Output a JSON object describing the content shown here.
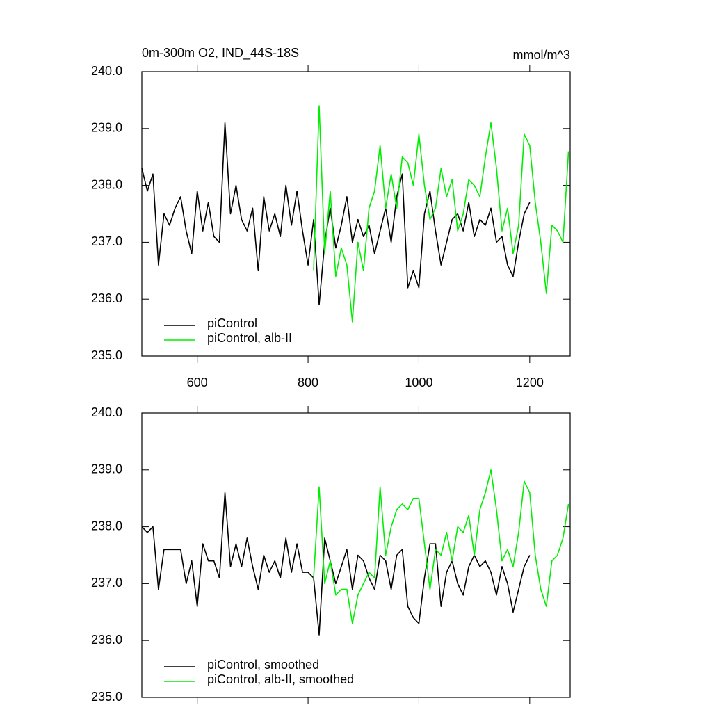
{
  "chart_data": [
    {
      "type": "line",
      "title": "0m-300m O2, IND_44S-18S",
      "units": "mmol/m^3",
      "xlim": [
        500,
        1273
      ],
      "xticks": [
        600,
        800,
        1000,
        1200
      ],
      "xtick_labels": true,
      "ylim": [
        235,
        240
      ],
      "yticks": [
        {
          "value": 235,
          "label": "235.0"
        },
        {
          "value": 236,
          "label": "236.0"
        },
        {
          "value": 237,
          "label": "237.0"
        },
        {
          "value": 238,
          "label": "238.0"
        },
        {
          "value": 239,
          "label": "239.0"
        },
        {
          "value": 240,
          "label": "240.0"
        }
      ],
      "legend": "lower left",
      "series": [
        {
          "name": "piControl",
          "color": "#000000",
          "x": [
            500,
            510,
            520,
            530,
            540,
            550,
            560,
            570,
            580,
            590,
            600,
            610,
            620,
            630,
            640,
            650,
            660,
            670,
            680,
            690,
            700,
            710,
            720,
            730,
            740,
            750,
            760,
            770,
            780,
            790,
            800,
            810,
            820,
            830,
            840,
            850,
            860,
            870,
            880,
            890,
            900,
            910,
            920,
            930,
            940,
            950,
            960,
            970,
            980,
            990,
            1000,
            1010,
            1020,
            1030,
            1040,
            1050,
            1060,
            1070,
            1080,
            1090,
            1100,
            1110,
            1120,
            1130,
            1140,
            1150,
            1160,
            1170,
            1180,
            1190,
            1200
          ],
          "values": [
            238.3,
            237.9,
            238.2,
            236.6,
            237.5,
            237.3,
            237.6,
            237.8,
            237.2,
            236.8,
            237.9,
            237.2,
            237.7,
            237.1,
            237.0,
            239.1,
            237.5,
            238.0,
            237.4,
            237.2,
            237.6,
            236.5,
            237.8,
            237.2,
            237.5,
            237.1,
            238.0,
            237.3,
            237.9,
            237.2,
            236.6,
            237.4,
            235.9,
            237.0,
            237.6,
            236.9,
            237.3,
            237.8,
            237.0,
            237.4,
            237.1,
            237.3,
            236.8,
            237.2,
            237.6,
            237.0,
            237.8,
            238.2,
            236.2,
            236.5,
            236.2,
            237.5,
            237.9,
            237.2,
            236.6,
            237.0,
            237.4,
            237.5,
            237.2,
            237.7,
            237.1,
            237.4,
            237.3,
            237.6,
            237.0,
            237.1,
            236.6,
            236.4,
            237.0,
            237.5,
            237.7
          ]
        },
        {
          "name": "piControl, alb-II",
          "color": "#00ee00",
          "x": [
            810,
            820,
            830,
            840,
            850,
            860,
            870,
            880,
            890,
            900,
            910,
            920,
            930,
            940,
            950,
            960,
            970,
            980,
            990,
            1000,
            1010,
            1020,
            1030,
            1040,
            1050,
            1060,
            1070,
            1080,
            1090,
            1100,
            1110,
            1120,
            1130,
            1140,
            1150,
            1160,
            1170,
            1180,
            1190,
            1200,
            1210,
            1220,
            1230,
            1240,
            1250,
            1260,
            1270
          ],
          "values": [
            236.5,
            239.4,
            236.8,
            237.9,
            236.4,
            236.9,
            236.6,
            235.6,
            237.0,
            236.5,
            237.6,
            237.9,
            238.7,
            237.6,
            238.2,
            237.6,
            238.5,
            238.4,
            238.0,
            238.9,
            238.0,
            237.4,
            237.6,
            238.3,
            237.8,
            238.1,
            237.2,
            237.5,
            238.1,
            238.0,
            237.8,
            238.5,
            239.1,
            238.3,
            237.2,
            237.6,
            236.8,
            237.3,
            238.9,
            238.7,
            237.7,
            237.0,
            236.1,
            237.3,
            237.2,
            237.0,
            238.6
          ]
        }
      ]
    },
    {
      "type": "line",
      "xlim": [
        500,
        1273
      ],
      "xticks": [
        600,
        800,
        1000,
        1200
      ],
      "xtick_labels": false,
      "ylim": [
        235,
        240
      ],
      "yticks": [
        {
          "value": 235,
          "label": "235.0"
        },
        {
          "value": 236,
          "label": "236.0"
        },
        {
          "value": 237,
          "label": "237.0"
        },
        {
          "value": 238,
          "label": "238.0"
        },
        {
          "value": 239,
          "label": "239.0"
        },
        {
          "value": 240,
          "label": "240.0"
        }
      ],
      "legend": "lower left",
      "series": [
        {
          "name": "piControl, smoothed",
          "color": "#000000",
          "x": [
            500,
            510,
            520,
            530,
            540,
            550,
            560,
            570,
            580,
            590,
            600,
            610,
            620,
            630,
            640,
            650,
            660,
            670,
            680,
            690,
            700,
            710,
            720,
            730,
            740,
            750,
            760,
            770,
            780,
            790,
            800,
            810,
            820,
            830,
            840,
            850,
            860,
            870,
            880,
            890,
            900,
            910,
            920,
            930,
            940,
            950,
            960,
            970,
            980,
            990,
            1000,
            1010,
            1020,
            1030,
            1040,
            1050,
            1060,
            1070,
            1080,
            1090,
            1100,
            1110,
            1120,
            1130,
            1140,
            1150,
            1160,
            1170,
            1180,
            1190,
            1200
          ],
          "values": [
            238.0,
            237.9,
            238.0,
            236.9,
            237.6,
            237.6,
            237.6,
            237.6,
            237.0,
            237.4,
            236.6,
            237.7,
            237.4,
            237.4,
            237.1,
            238.6,
            237.3,
            237.7,
            237.3,
            237.8,
            237.3,
            236.9,
            237.5,
            237.2,
            237.4,
            237.1,
            237.8,
            237.2,
            237.7,
            237.2,
            237.2,
            237.1,
            236.1,
            237.8,
            237.4,
            237.0,
            237.3,
            237.6,
            236.9,
            237.5,
            237.4,
            237.1,
            236.9,
            237.5,
            237.4,
            236.9,
            237.5,
            237.6,
            236.6,
            236.4,
            236.3,
            237.1,
            237.7,
            237.7,
            236.6,
            237.2,
            237.4,
            237.0,
            236.8,
            237.3,
            237.5,
            237.3,
            237.4,
            237.2,
            236.8,
            237.3,
            237.0,
            236.5,
            236.9,
            237.3,
            237.5
          ]
        },
        {
          "name": "piControl, alb-II, smoothed",
          "color": "#00ee00",
          "x": [
            810,
            820,
            830,
            840,
            850,
            860,
            870,
            880,
            890,
            900,
            910,
            920,
            930,
            940,
            950,
            960,
            970,
            980,
            990,
            1000,
            1010,
            1020,
            1030,
            1040,
            1050,
            1060,
            1070,
            1080,
            1090,
            1100,
            1110,
            1120,
            1130,
            1140,
            1150,
            1160,
            1170,
            1180,
            1190,
            1200,
            1210,
            1220,
            1230,
            1240,
            1250,
            1260,
            1270
          ],
          "values": [
            237.1,
            238.7,
            237.0,
            237.4,
            236.8,
            236.9,
            236.9,
            236.3,
            236.8,
            237.0,
            237.2,
            237.1,
            238.7,
            237.5,
            238.0,
            238.3,
            238.4,
            238.3,
            238.5,
            238.5,
            237.7,
            236.9,
            237.6,
            237.5,
            237.9,
            237.4,
            238.0,
            237.9,
            238.2,
            237.5,
            238.3,
            238.6,
            239.0,
            238.3,
            237.4,
            237.6,
            237.3,
            237.9,
            238.8,
            238.6,
            237.5,
            236.9,
            236.6,
            237.4,
            237.5,
            237.8,
            238.4
          ]
        }
      ]
    }
  ]
}
